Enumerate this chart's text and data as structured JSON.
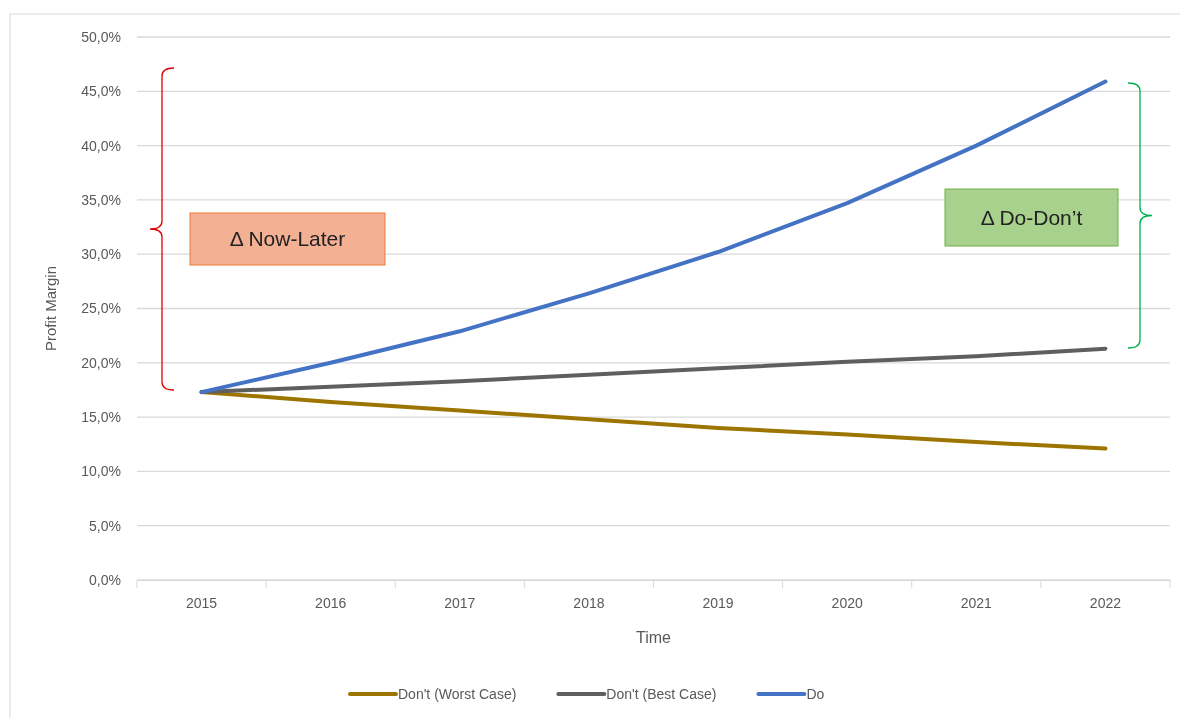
{
  "chart_data": {
    "type": "line",
    "xlabel": "Time",
    "ylabel": "Profit Margin",
    "categories": [
      "2015",
      "2016",
      "2017",
      "2018",
      "2019",
      "2020",
      "2021",
      "2022"
    ],
    "series": [
      {
        "name": "Don't (Worst Case)",
        "color": "#9c7400",
        "values": [
          17.3,
          16.4,
          15.6,
          14.8,
          14.0,
          13.4,
          12.7,
          12.1
        ]
      },
      {
        "name": "Don't (Best Case)",
        "color": "#5f5f5f",
        "values": [
          17.3,
          17.8,
          18.3,
          18.9,
          19.5,
          20.1,
          20.6,
          21.3
        ]
      },
      {
        "name": "Do",
        "color": "#4472c4",
        "values": [
          17.3,
          20.0,
          22.9,
          26.4,
          30.2,
          34.7,
          40.0,
          45.9
        ]
      }
    ],
    "ylim": [
      0,
      50
    ],
    "yticks": [
      {
        "value": 0,
        "label": "0,0%"
      },
      {
        "value": 5,
        "label": "5,0%"
      },
      {
        "value": 10,
        "label": "10,0%"
      },
      {
        "value": 15,
        "label": "15,0%"
      },
      {
        "value": 20,
        "label": "20,0%"
      },
      {
        "value": 25,
        "label": "25,0%"
      },
      {
        "value": 30,
        "label": "30,0%"
      },
      {
        "value": 35,
        "label": "35,0%"
      },
      {
        "value": 40,
        "label": "40,0%"
      },
      {
        "value": 45,
        "label": "45,0%"
      },
      {
        "value": 50,
        "label": "50,0%"
      }
    ],
    "grid": "y",
    "legend": "bottom",
    "line_style": "solid",
    "marker": "none",
    "annotations": [
      "Δ Now-Later",
      "Δ Do-Don’t"
    ]
  }
}
